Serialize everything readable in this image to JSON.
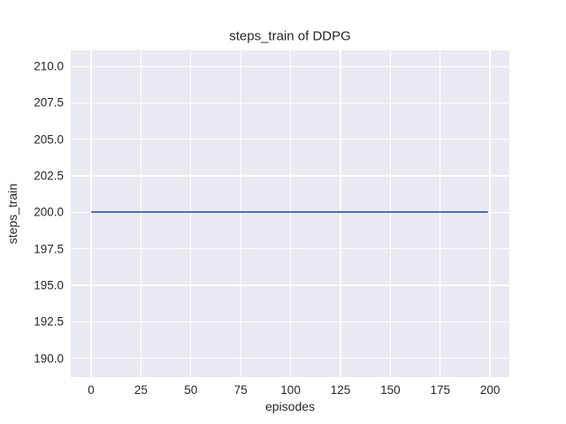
{
  "figure": {
    "background": "#ffffff"
  },
  "chart_data": {
    "type": "line",
    "title": "steps_train of DDPG",
    "xlabel": "episodes",
    "ylabel": "steps_train",
    "grid": true,
    "legend": false,
    "xlim": [
      -10.2,
      209.7
    ],
    "ylim": [
      188.7,
      211.1
    ],
    "x_ticks": [
      0,
      25,
      50,
      75,
      100,
      125,
      150,
      175,
      200
    ],
    "x_tick_labels": [
      "0",
      "25",
      "50",
      "75",
      "100",
      "125",
      "150",
      "175",
      "200"
    ],
    "y_ticks": [
      190.0,
      192.5,
      195.0,
      197.5,
      200.0,
      202.5,
      205.0,
      207.5,
      210.0
    ],
    "y_tick_labels": [
      "190.0",
      "192.5",
      "195.0",
      "197.5",
      "200.0",
      "202.5",
      "205.0",
      "207.5",
      "210.0"
    ],
    "series": [
      {
        "name": "steps_train",
        "x": [
          0,
          199
        ],
        "y": [
          200,
          200
        ],
        "color": "#4c72b0"
      }
    ],
    "colors": {
      "axes_background": "#eaeaf2",
      "gridline": "#ffffff",
      "text": "#262626"
    }
  }
}
